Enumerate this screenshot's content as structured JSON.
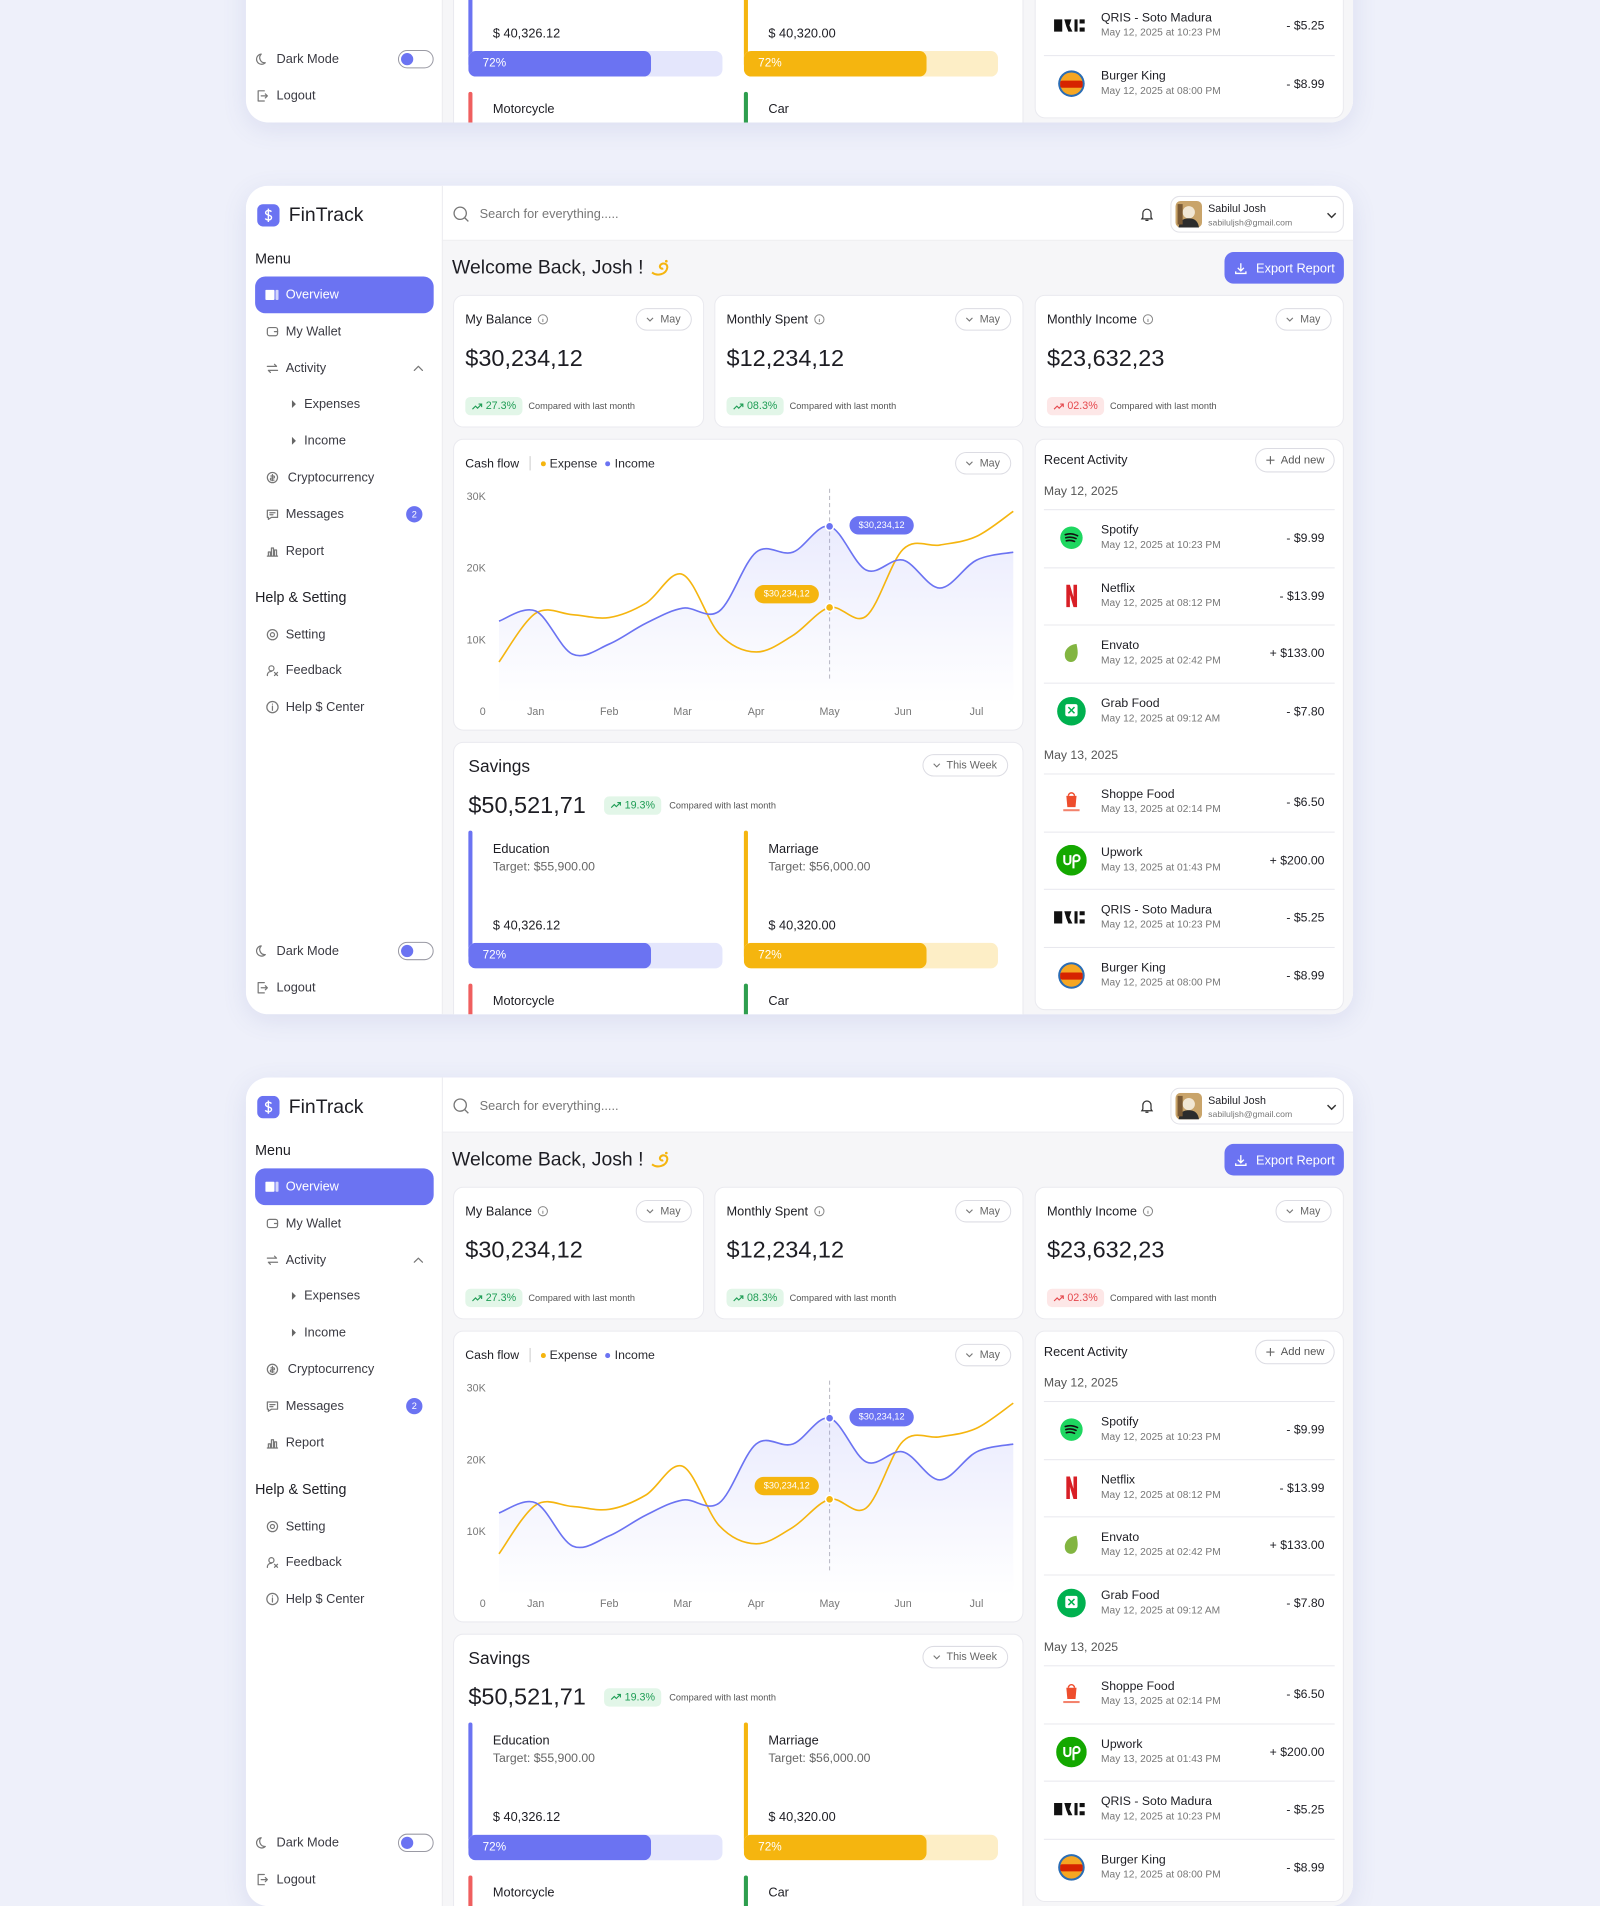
{
  "brand": "FinTrack",
  "search_placeholder": "Search for everything.....",
  "user": {
    "name": "Sabilul Josh",
    "email": "sabiluljsh@gmail.com"
  },
  "sidebar": {
    "menu_title": "Menu",
    "menu": [
      {
        "label": "Overview"
      },
      {
        "label": "My Wallet"
      },
      {
        "label": "Activity",
        "children": [
          {
            "label": "Expenses"
          },
          {
            "label": "Income"
          }
        ]
      },
      {
        "label": "Cryptocurrency"
      },
      {
        "label": "Messages",
        "badge": 2
      },
      {
        "label": "Report"
      }
    ],
    "help_title": "Help & Setting",
    "help": [
      "Setting",
      "Feedback",
      "Help $ Center"
    ],
    "dark_mode": "Dark Mode",
    "logout": "Logout"
  },
  "welcome": "Welcome Back, Josh !",
  "export": "Export Report",
  "cards": [
    {
      "title": "My Balance",
      "period": "May",
      "value": "$30,234,12",
      "change": "27.3%",
      "change_color": "#1f9d55",
      "change_bg": "#e2f6e8",
      "note": "Compared with last month"
    },
    {
      "title": "Monthly Spent",
      "period": "May",
      "value": "$12,234,12",
      "change": "08.3%",
      "change_color": "#1f9d55",
      "change_bg": "#e2f6e8",
      "note": "Compared with last month"
    },
    {
      "title": "Monthly Income",
      "period": "May",
      "value": "$23,632,23",
      "change": "02.3%",
      "change_color": "#e5484d",
      "change_bg": "#fde7e7",
      "note": "Compared with last month"
    }
  ],
  "chart_data": {
    "type": "line",
    "title": "Cash flow",
    "period": "May",
    "x": [
      0.5,
      1,
      1.5,
      2,
      2.5,
      3,
      3.5,
      4,
      4.5,
      5,
      5.5,
      6,
      6.5,
      7,
      7.5
    ],
    "series": [
      {
        "name": "Expense",
        "color": "#f5b50f",
        "values": [
          7000,
          13800,
          13600,
          13200,
          15200,
          19200,
          10900,
          8400,
          10700,
          14600,
          13400,
          22700,
          23300,
          24500,
          28000
        ]
      },
      {
        "name": "Income",
        "color": "#6b73f2",
        "values": [
          12700,
          14100,
          8100,
          9500,
          12400,
          14500,
          14100,
          22300,
          22300,
          25900,
          19800,
          21200,
          17300,
          21200,
          22300
        ]
      }
    ],
    "xlim": [
      0.5,
      7.5
    ],
    "xticks": [
      {
        "value": 1,
        "label": "Jan"
      },
      {
        "value": 2,
        "label": "Feb"
      },
      {
        "value": 3,
        "label": "Mar"
      },
      {
        "value": 4,
        "label": "Apr"
      },
      {
        "value": 5,
        "label": "May"
      },
      {
        "value": 6,
        "label": "Jun"
      },
      {
        "value": 7,
        "label": "Jul"
      }
    ],
    "ylim": [
      0,
      30000
    ],
    "yticks": [
      0,
      {
        "value": 10000,
        "label": "10K"
      },
      {
        "value": 20000,
        "label": "20K"
      },
      {
        "value": 30000,
        "label": "30K"
      }
    ],
    "grid": false,
    "annotations": [
      "$30,234,12",
      "$30,234,12"
    ]
  },
  "savings": {
    "title": "Savings",
    "period": "This Week",
    "value": "$50,521,71",
    "change": "19.3%",
    "note": "Compared with last month",
    "goals": [
      {
        "name": "Education",
        "target": "Target: $55,900.00",
        "saved": "$ 40,326.12",
        "progress": 72,
        "progress_label": "72%",
        "color": "#6b73f2",
        "track": "#e4e6fc"
      },
      {
        "name": "Marriage",
        "target": "Target: $56,000.00",
        "saved": "$ 40,320.00",
        "progress": 72,
        "progress_label": "72%",
        "color": "#f5b50f",
        "track": "#fdeec6"
      },
      {
        "name": "Motorcycle",
        "color": "#ef5f5f"
      },
      {
        "name": "Car",
        "color": "#2e9e4e"
      }
    ]
  },
  "activity": {
    "title": "Recent Activity",
    "add": "Add new",
    "groups": [
      {
        "date": "May 12, 2025",
        "items": [
          {
            "name": "Spotify",
            "time": "May 12, 2025 at 10:23 PM",
            "amount": "- $9.99"
          },
          {
            "name": "Netflix",
            "time": "May 12, 2025 at 08:12 PM",
            "amount": "- $13.99"
          },
          {
            "name": "Envato",
            "time": "May 12, 2025 at 02:42 PM",
            "amount": "+ $133.00"
          },
          {
            "name": "Grab Food",
            "time": "May 12, 2025 at 09:12 AM",
            "amount": "- $7.80"
          }
        ]
      },
      {
        "date": "May 13, 2025",
        "items": [
          {
            "name": "Shoppe Food",
            "time": "May 13, 2025 at 02:14 PM",
            "amount": "- $6.50"
          },
          {
            "name": "Upwork",
            "time": "May 13, 2025 at 01:43 PM",
            "amount": "+ $200.00"
          },
          {
            "name": "QRIS - Soto Madura",
            "time": "May 12, 2025 at 10:23 PM",
            "amount": "- $5.25"
          },
          {
            "name": "Burger King",
            "time": "May 12, 2025 at 08:00 PM",
            "amount": "- $8.99"
          }
        ]
      }
    ]
  }
}
